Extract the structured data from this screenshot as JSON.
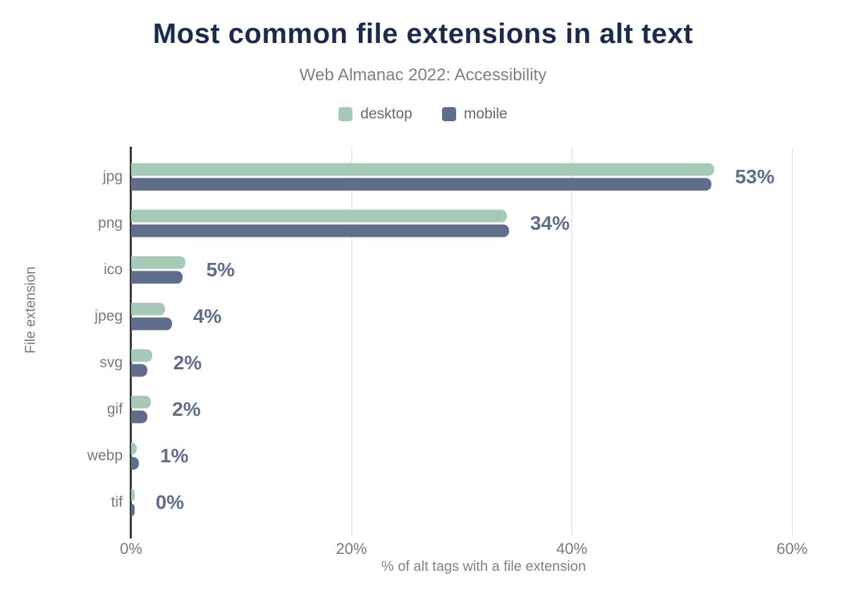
{
  "chart_data": {
    "type": "bar",
    "orientation": "horizontal",
    "title": "Most common file extensions in alt text",
    "subtitle": "Web Almanac 2022: Accessibility",
    "xlabel": "% of alt tags with a file extension",
    "ylabel": "File extension",
    "categories": [
      "jpg",
      "png",
      "ico",
      "jpeg",
      "svg",
      "gif",
      "webp",
      "tif"
    ],
    "series": [
      {
        "name": "desktop",
        "color": "#a6c9b8",
        "values": [
          52.9,
          34.1,
          4.9,
          3.1,
          1.9,
          1.8,
          0.5,
          0.3
        ]
      },
      {
        "name": "mobile",
        "color": "#5f6e8c",
        "values": [
          52.7,
          34.3,
          4.7,
          3.7,
          1.5,
          1.5,
          0.7,
          0.3
        ]
      }
    ],
    "value_labels": [
      "53%",
      "34%",
      "5%",
      "4%",
      "2%",
      "2%",
      "1%",
      "0%"
    ],
    "x_ticks": [
      {
        "value": 0,
        "label": "0%"
      },
      {
        "value": 20,
        "label": "20%"
      },
      {
        "value": 40,
        "label": "40%"
      },
      {
        "value": 60,
        "label": "60%"
      }
    ],
    "xlim": [
      0,
      64
    ],
    "grid": "vertical",
    "legend_position": "top"
  },
  "colors": {
    "title": "#1b2b4d",
    "subtitle": "#7b8087",
    "axis_text": "#74797f",
    "value_label": "#5c6d8e",
    "gridline": "#ededed",
    "axis_line": "#383838",
    "desktop": "#a6c9b8",
    "mobile": "#5f6e8c"
  }
}
